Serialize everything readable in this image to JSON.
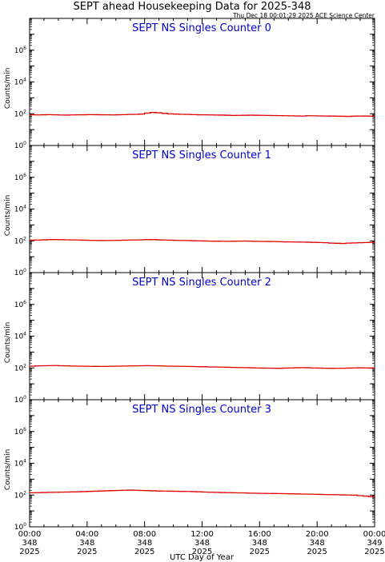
{
  "title": "SEPT ahead Housekeeping Data for 2025-348",
  "timestamp": "Thu Dec 18 00:01:29 2025 ACE Science Center",
  "colors": {
    "data": "#e00000",
    "panel_title": "#0000cc",
    "axis": "#000000"
  },
  "chart_data": [
    {
      "type": "line",
      "title": "SEPT NS Singles Counter 0",
      "ylabel": "Counts/min",
      "xlabel": "",
      "yscale": "log",
      "ylim": [
        1,
        100000000
      ],
      "xlim": [
        0,
        24
      ],
      "x_unit": "hours since 2025-348 00:00 UTC",
      "series": [
        {
          "values": [
            85,
            84,
            86,
            88,
            85,
            83,
            82,
            84,
            85,
            86,
            88,
            87,
            86,
            85,
            84,
            86,
            88,
            90,
            92,
            95,
            110,
            120,
            115,
            105,
            98,
            95,
            92,
            90,
            88,
            86,
            85,
            84,
            83,
            82,
            80,
            78,
            79,
            80,
            81,
            80,
            79,
            78,
            77,
            76,
            75,
            74,
            73,
            72,
            75,
            74,
            73,
            72,
            71,
            70,
            69,
            68,
            70,
            72,
            71,
            70
          ]
        }
      ]
    },
    {
      "type": "line",
      "title": "SEPT NS Singles Counter 1",
      "ylabel": "Counts/min",
      "xlabel": "",
      "yscale": "log",
      "ylim": [
        1,
        100000000
      ],
      "xlim": [
        0,
        24
      ],
      "series": [
        {
          "values": [
            110,
            112,
            115,
            118,
            120,
            118,
            116,
            114,
            112,
            110,
            108,
            106,
            105,
            104,
            106,
            108,
            110,
            112,
            114,
            116,
            118,
            120,
            115,
            112,
            110,
            108,
            106,
            104,
            102,
            100,
            98,
            96,
            95,
            94,
            93,
            95,
            96,
            97,
            95,
            93,
            92,
            91,
            90,
            88,
            86,
            85,
            84,
            83,
            82,
            80,
            78,
            76,
            72,
            70,
            68,
            72,
            74,
            76,
            78,
            80
          ]
        }
      ]
    },
    {
      "type": "line",
      "title": "SEPT NS Singles Counter 2",
      "ylabel": "Counts/min",
      "xlabel": "",
      "yscale": "log",
      "ylim": [
        1,
        100000000
      ],
      "xlim": [
        0,
        24
      ],
      "series": [
        {
          "values": [
            130,
            135,
            138,
            140,
            142,
            138,
            135,
            132,
            130,
            128,
            126,
            125,
            124,
            126,
            128,
            130,
            132,
            134,
            136,
            138,
            140,
            138,
            135,
            132,
            130,
            128,
            126,
            124,
            122,
            120,
            118,
            116,
            114,
            112,
            110,
            108,
            106,
            104,
            102,
            100,
            98,
            97,
            96,
            95,
            98,
            100,
            102,
            104,
            102,
            100,
            98,
            96,
            95,
            94,
            96,
            98,
            100,
            102,
            100,
            98
          ]
        }
      ]
    },
    {
      "type": "line",
      "title": "SEPT NS Singles Counter 3",
      "ylabel": "Counts/min",
      "xlabel": "UTC Day of Year",
      "yscale": "log",
      "ylim": [
        1,
        100000000
      ],
      "xlim": [
        0,
        24
      ],
      "series": [
        {
          "values": [
            140,
            142,
            145,
            148,
            150,
            152,
            155,
            158,
            160,
            165,
            170,
            175,
            180,
            185,
            190,
            195,
            200,
            205,
            200,
            195,
            190,
            185,
            180,
            178,
            175,
            172,
            170,
            168,
            165,
            160,
            155,
            150,
            148,
            145,
            142,
            140,
            138,
            135,
            132,
            130,
            128,
            126,
            125,
            124,
            122,
            120,
            118,
            116,
            114,
            112,
            110,
            108,
            106,
            104,
            102,
            100,
            98,
            92,
            86,
            80
          ]
        }
      ]
    }
  ],
  "x_ticks": [
    {
      "time": "00:00",
      "day": "348",
      "year": "2025"
    },
    {
      "time": "04:00",
      "day": "348",
      "year": "2025"
    },
    {
      "time": "08:00",
      "day": "348",
      "year": "2025"
    },
    {
      "time": "12:00",
      "day": "348",
      "year": "2025"
    },
    {
      "time": "16:00",
      "day": "348",
      "year": "2025"
    },
    {
      "time": "20:00",
      "day": "348",
      "year": "2025"
    },
    {
      "time": "00:00",
      "day": "349",
      "year": "2025"
    }
  ],
  "y_ticks": [
    {
      "base": "10",
      "exp": "0"
    },
    {
      "base": "10",
      "exp": "2"
    },
    {
      "base": "10",
      "exp": "4"
    },
    {
      "base": "10",
      "exp": "6"
    }
  ]
}
